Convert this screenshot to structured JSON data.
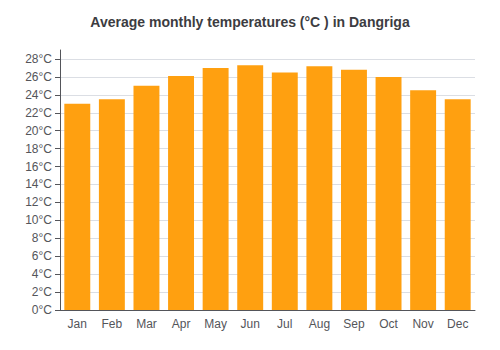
{
  "chart_data": {
    "type": "bar",
    "title": "Average monthly temperatures (°C ) in Dangriga",
    "categories": [
      "Jan",
      "Feb",
      "Mar",
      "Apr",
      "May",
      "Jun",
      "Jul",
      "Aug",
      "Sep",
      "Oct",
      "Nov",
      "Dec"
    ],
    "values": [
      23.0,
      23.5,
      25.0,
      26.1,
      27.0,
      27.3,
      26.5,
      27.2,
      26.8,
      26.0,
      24.5,
      23.5
    ],
    "color": "#FFA010",
    "ylim": [
      0,
      29
    ],
    "yticks": [
      {
        "value": 0,
        "label": "0°C"
      },
      {
        "value": 2,
        "label": "2°C"
      },
      {
        "value": 4,
        "label": "4°C"
      },
      {
        "value": 6,
        "label": "6°C"
      },
      {
        "value": 8,
        "label": "8°C"
      },
      {
        "value": 10,
        "label": "10°C"
      },
      {
        "value": 12,
        "label": "12°C"
      },
      {
        "value": 14,
        "label": "14°C"
      },
      {
        "value": 16,
        "label": "16°C"
      },
      {
        "value": 18,
        "label": "18°C"
      },
      {
        "value": 20,
        "label": "20°C"
      },
      {
        "value": 22,
        "label": "22°C"
      },
      {
        "value": 24,
        "label": "24°C"
      },
      {
        "value": 26,
        "label": "26°C"
      },
      {
        "value": 28,
        "label": "28°C"
      }
    ],
    "grid": true
  }
}
